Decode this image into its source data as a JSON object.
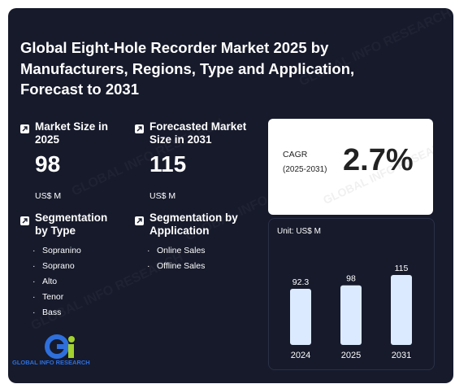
{
  "title": "Global Eight-Hole Recorder Market 2025 by Manufacturers, Regions, Type and Application, Forecast to 2031",
  "market_size": {
    "label": "Market Size in 2025",
    "value": "98",
    "unit": "US$ M"
  },
  "forecast_size": {
    "label": "Forecasted Market Size in 2031",
    "value": "115",
    "unit": "US$ M"
  },
  "seg_type": {
    "label": "Segmentation by Type",
    "items": [
      "Sopranino",
      "Soprano",
      "Alto",
      "Tenor",
      "Bass"
    ]
  },
  "seg_app": {
    "label": "Segmentation by Application",
    "items": [
      "Online Sales",
      "Offline Sales"
    ]
  },
  "cagr": {
    "label": "CAGR",
    "period": "(2025-2031)",
    "value": "2.7%"
  },
  "watermark": "GLOBAL INFO RESEARCH",
  "logo_text": "GLOBAL INFO RESEARCH",
  "colors": {
    "background": "#161a2b",
    "bar": "#dbeafe",
    "accent": "#a3d12e"
  },
  "chart_data": {
    "type": "bar",
    "unit_label": "Unit: US$ M",
    "categories": [
      "2024",
      "2025",
      "2031"
    ],
    "values": [
      92.3,
      98,
      115
    ],
    "ylim": [
      0,
      115
    ]
  }
}
